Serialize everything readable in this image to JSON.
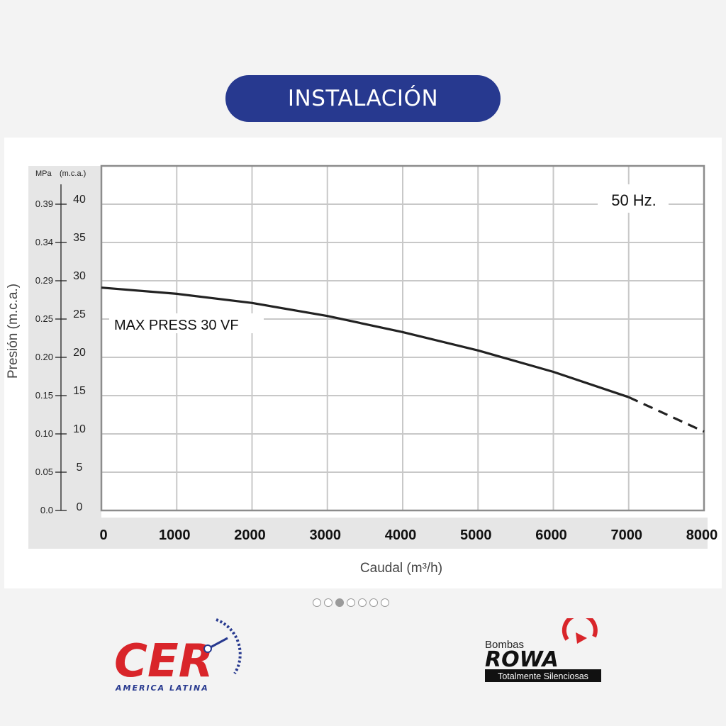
{
  "header": {
    "title": "INSTALACIÓN"
  },
  "chart_data": {
    "type": "line",
    "annotation": "50 Hz.",
    "ylabel": "Presión (m.c.a.)",
    "xlabel": "Caudal (m³/h)",
    "y_unit_left": "MPa",
    "y_unit_right": "(m.c.a.)",
    "xlim": [
      0,
      8000
    ],
    "ylim": [
      0,
      40
    ],
    "grid": true,
    "x_ticks": [
      0,
      1000,
      2000,
      3000,
      4000,
      5000,
      6000,
      7000,
      8000
    ],
    "x_tick_labels": [
      "0",
      "1000",
      "2000",
      "3000",
      "4000",
      "5000",
      "6000",
      "7000",
      "8000"
    ],
    "y_ticks": [
      0,
      5,
      10,
      15,
      20,
      25,
      30,
      35,
      40
    ],
    "y_tick_labels": [
      "0",
      "5",
      "10",
      "15",
      "20",
      "25",
      "30",
      "35",
      "40"
    ],
    "mpa_tick_labels": [
      "0.0",
      "0.05",
      "0.10",
      "0.15",
      "0.20",
      "0.25",
      "0.29",
      "0.34",
      "0.39"
    ],
    "series": [
      {
        "name": "MAX PRESS 30 VF",
        "solid": [
          {
            "x": 0,
            "y": 29.1
          },
          {
            "x": 1000,
            "y": 28.3
          },
          {
            "x": 2000,
            "y": 27.1
          },
          {
            "x": 3000,
            "y": 25.4
          },
          {
            "x": 4000,
            "y": 23.3
          },
          {
            "x": 5000,
            "y": 20.9
          },
          {
            "x": 6000,
            "y": 18.1
          },
          {
            "x": 7000,
            "y": 14.8
          }
        ],
        "dashed": [
          {
            "x": 7000,
            "y": 14.8
          },
          {
            "x": 8000,
            "y": 10.3
          }
        ]
      }
    ],
    "colors": {
      "line": "#222222",
      "grid": "#c8c8c8",
      "axis_band": "#e6e6e6",
      "frame": "#8c8c8c"
    }
  },
  "carousel": {
    "count": 7,
    "active": 2
  },
  "logos": {
    "cer": {
      "letters": "CER",
      "subtitle": "AMERICA LATINA",
      "color": "#d9252a",
      "accent": "#27398f"
    },
    "rowa": {
      "top": "Bombas",
      "brand": "ROWA",
      "tagline": "Totalmente Silenciosas",
      "color": "#d9252a"
    }
  }
}
